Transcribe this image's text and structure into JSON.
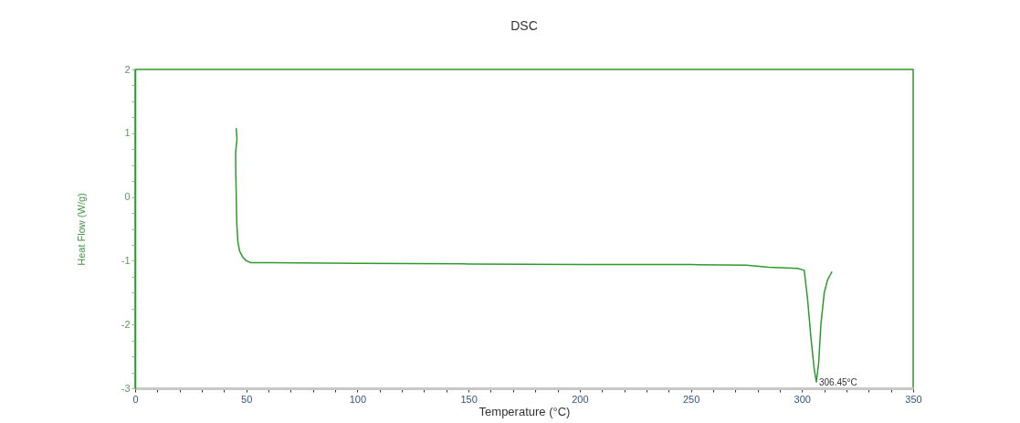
{
  "chart_data": {
    "type": "line",
    "title": "DSC",
    "xlabel": "Temperature (°C)",
    "ylabel": "Heat Flow (W/g)",
    "xlim": [
      0,
      350
    ],
    "ylim": [
      -3,
      2
    ],
    "xticks": [
      0,
      {
        "value": 10,
        "label": null
      },
      {
        "value": 20,
        "label": null
      },
      {
        "value": 30,
        "label": null
      },
      {
        "value": 40,
        "label": null
      },
      50,
      {
        "value": 60,
        "label": null
      },
      {
        "value": 70,
        "label": null
      },
      {
        "value": 80,
        "label": null
      },
      {
        "value": 90,
        "label": null
      },
      100,
      {
        "value": 110,
        "label": null
      },
      {
        "value": 120,
        "label": null
      },
      {
        "value": 130,
        "label": null
      },
      {
        "value": 140,
        "label": null
      },
      150,
      {
        "value": 160,
        "label": null
      },
      {
        "value": 170,
        "label": null
      },
      {
        "value": 180,
        "label": null
      },
      {
        "value": 190,
        "label": null
      },
      200,
      {
        "value": 210,
        "label": null
      },
      {
        "value": 220,
        "label": null
      },
      {
        "value": 230,
        "label": null
      },
      {
        "value": 240,
        "label": null
      },
      250,
      {
        "value": 260,
        "label": null
      },
      {
        "value": 270,
        "label": null
      },
      {
        "value": 280,
        "label": null
      },
      {
        "value": 290,
        "label": null
      },
      300,
      {
        "value": 310,
        "label": null
      },
      {
        "value": 320,
        "label": null
      },
      {
        "value": 330,
        "label": null
      },
      {
        "value": 340,
        "label": null
      },
      350
    ],
    "yticks": [
      -3,
      {
        "value": -2.75,
        "label": null
      },
      {
        "value": -2.5,
        "label": null
      },
      {
        "value": -2.25,
        "label": null
      },
      -2,
      {
        "value": -1.75,
        "label": null
      },
      {
        "value": -1.5,
        "label": null
      },
      {
        "value": -1.25,
        "label": null
      },
      -1,
      {
        "value": -0.75,
        "label": null
      },
      {
        "value": -0.5,
        "label": null
      },
      {
        "value": -0.25,
        "label": null
      },
      0,
      {
        "value": 0.25,
        "label": null
      },
      {
        "value": 0.5,
        "label": null
      },
      {
        "value": 0.75,
        "label": null
      },
      1,
      {
        "value": 1.25,
        "label": null
      },
      {
        "value": 1.5,
        "label": null
      },
      {
        "value": 1.75,
        "label": null
      },
      2
    ],
    "grid": false,
    "marker": "none",
    "series": [
      {
        "color": "#2e9a2e",
        "x": [
          45.5,
          45.8,
          45.2,
          45.3,
          45.5,
          45.7,
          46.2,
          47,
          48.5,
          50,
          52,
          60,
          100,
          150,
          200,
          250,
          275,
          285,
          298,
          301,
          302.5,
          304,
          305.5,
          306.45,
          307.5,
          308.5,
          310,
          311.5,
          313.5
        ],
        "values": [
          1.08,
          0.9,
          0.7,
          0.3,
          0,
          -0.4,
          -0.7,
          -0.85,
          -0.95,
          -1.0,
          -1.03,
          -1.03,
          -1.04,
          -1.05,
          -1.06,
          -1.06,
          -1.07,
          -1.1,
          -1.12,
          -1.15,
          -1.6,
          -2.2,
          -2.7,
          -2.9,
          -2.6,
          -2.0,
          -1.5,
          -1.3,
          -1.17
        ]
      }
    ],
    "annotations": [
      {
        "text": "306.45°C",
        "x": 306.45,
        "y": -2.9
      }
    ]
  }
}
